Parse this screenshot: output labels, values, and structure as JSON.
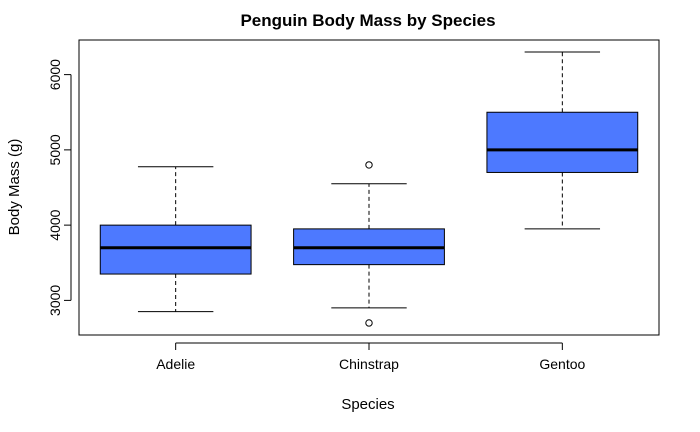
{
  "chart_data": {
    "type": "boxplot",
    "title": "Penguin Body Mass by Species",
    "xlabel": "Species",
    "ylabel": "Body Mass (g)",
    "categories": [
      "Adelie",
      "Chinstrap",
      "Gentoo"
    ],
    "y_ticks": [
      3000,
      4000,
      5000,
      6000
    ],
    "ylim": [
      2540,
      6460
    ],
    "grid": false,
    "box_color": "#4D79FF",
    "boxes": [
      {
        "category": "Adelie",
        "whisker_low": 2850,
        "q1": 3350,
        "median": 3700,
        "q3": 4000,
        "whisker_high": 4775,
        "outliers": []
      },
      {
        "category": "Chinstrap",
        "whisker_low": 2900,
        "q1": 3475,
        "median": 3700,
        "q3": 3950,
        "whisker_high": 4550,
        "outliers": [
          2700,
          4800
        ]
      },
      {
        "category": "Gentoo",
        "whisker_low": 3950,
        "q1": 4700,
        "median": 5000,
        "q3": 5500,
        "whisker_high": 6300,
        "outliers": []
      }
    ]
  }
}
